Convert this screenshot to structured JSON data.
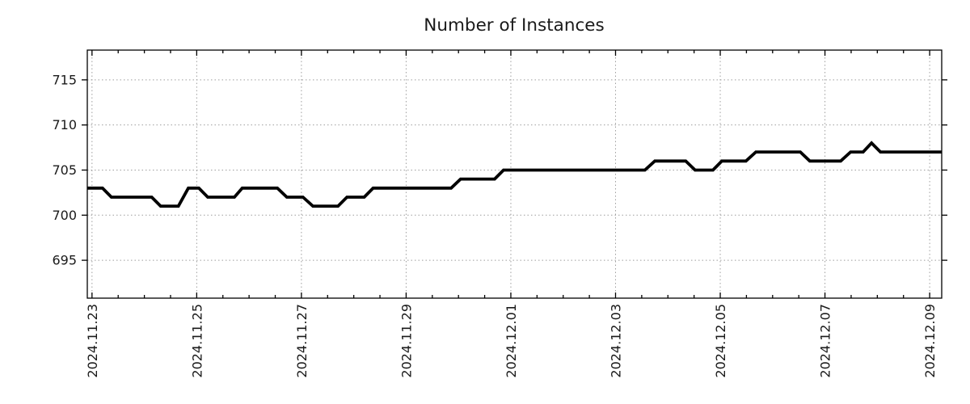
{
  "page": {
    "background_color": "#ffffff"
  },
  "chart_data": {
    "type": "line",
    "title": "Number of Instances",
    "legend": "none",
    "grid": {
      "show": true,
      "style": "dotted",
      "color": "#9e9e9e"
    },
    "frame_color": "#000000",
    "text_color": "#1a1a1a",
    "x_axis": {
      "unit": "days since 2024.11.23",
      "tick_labels": [
        "2024.11.23",
        "2024.11.25",
        "2024.11.27",
        "2024.11.29",
        "2024.12.01",
        "2024.12.03",
        "2024.12.05",
        "2024.12.07",
        "2024.12.09"
      ],
      "label_tick_interval_days": 2,
      "minor_tick_interval_days": 0.5,
      "range_days": [
        -0.09,
        16.23
      ]
    },
    "y_axis": {
      "tick_labels": [
        695,
        700,
        705,
        710,
        715
      ],
      "range": [
        690.8,
        718.3
      ]
    },
    "series": [
      {
        "name": "instances",
        "color": "#000000",
        "points": [
          [
            -0.09,
            703
          ],
          [
            0.2,
            703
          ],
          [
            0.37,
            702
          ],
          [
            1.14,
            702
          ],
          [
            1.31,
            701
          ],
          [
            1.65,
            701
          ],
          [
            1.84,
            703
          ],
          [
            2.04,
            703
          ],
          [
            2.21,
            702
          ],
          [
            2.72,
            702
          ],
          [
            2.87,
            703
          ],
          [
            3.54,
            703
          ],
          [
            3.72,
            702
          ],
          [
            4.03,
            702
          ],
          [
            4.22,
            701
          ],
          [
            4.7,
            701
          ],
          [
            4.87,
            702
          ],
          [
            5.2,
            702
          ],
          [
            5.37,
            703
          ],
          [
            6.86,
            703
          ],
          [
            7.04,
            704
          ],
          [
            7.69,
            704
          ],
          [
            7.86,
            705
          ],
          [
            10.56,
            705
          ],
          [
            10.75,
            706
          ],
          [
            11.34,
            706
          ],
          [
            11.52,
            705
          ],
          [
            11.86,
            705
          ],
          [
            12.03,
            706
          ],
          [
            12.49,
            706
          ],
          [
            12.68,
            707
          ],
          [
            13.53,
            707
          ],
          [
            13.71,
            706
          ],
          [
            14.3,
            706
          ],
          [
            14.49,
            707
          ],
          [
            14.73,
            707
          ],
          [
            14.89,
            708
          ],
          [
            15.06,
            707
          ],
          [
            16.23,
            707
          ]
        ]
      }
    ]
  }
}
